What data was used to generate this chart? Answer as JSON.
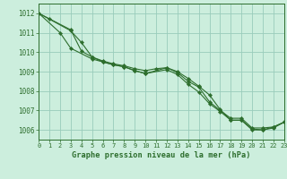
{
  "xlabel": "Graphe pression niveau de la mer (hPa)",
  "bg_color": "#cceedd",
  "grid_color": "#99ccbb",
  "line_color": "#2d6e2d",
  "x": [
    0,
    1,
    2,
    3,
    4,
    5,
    6,
    7,
    8,
    9,
    10,
    11,
    12,
    13,
    14,
    15,
    16,
    17,
    18,
    19,
    20,
    21,
    22,
    23
  ],
  "line1": [
    1012.0,
    1011.7,
    null,
    1011.1,
    1010.5,
    1009.75,
    1009.55,
    1009.4,
    1009.3,
    1009.15,
    1009.05,
    1009.15,
    1009.2,
    1008.95,
    1008.5,
    1008.2,
    1007.45,
    1007.0,
    1006.6,
    1006.6,
    1006.1,
    1006.1,
    1006.15,
    1006.4
  ],
  "line2": [
    1012.0,
    null,
    1011.0,
    1010.2,
    null,
    1009.65,
    1009.5,
    1009.35,
    1009.25,
    1009.05,
    1008.9,
    null,
    1009.1,
    1008.85,
    1008.35,
    1007.95,
    1007.35,
    1006.95,
    1006.5,
    1006.5,
    1006.0,
    1006.0,
    1006.1,
    1006.4
  ],
  "line3": [
    1012.0,
    null,
    null,
    1011.15,
    1010.05,
    1009.75,
    1009.5,
    1009.35,
    1009.25,
    1009.05,
    1008.9,
    null,
    1009.2,
    1009.0,
    1008.65,
    1008.25,
    1007.8,
    1007.05,
    1006.5,
    1006.5,
    1006.05,
    1006.0,
    1006.15,
    1006.4
  ],
  "ylim": [
    1005.5,
    1012.5
  ],
  "xlim": [
    0,
    23
  ],
  "yticks": [
    1006,
    1007,
    1008,
    1009,
    1010,
    1011,
    1012
  ],
  "xticks": [
    0,
    1,
    2,
    3,
    4,
    5,
    6,
    7,
    8,
    9,
    10,
    11,
    12,
    13,
    14,
    15,
    16,
    17,
    18,
    19,
    20,
    21,
    22,
    23
  ],
  "xtick_labels": [
    "0",
    "1",
    "2",
    "3",
    "4",
    "5",
    "6",
    "7",
    "8",
    "9",
    "10",
    "11",
    "12",
    "13",
    "14",
    "15",
    "16",
    "17",
    "18",
    "19",
    "20",
    "21",
    "22",
    "23"
  ]
}
